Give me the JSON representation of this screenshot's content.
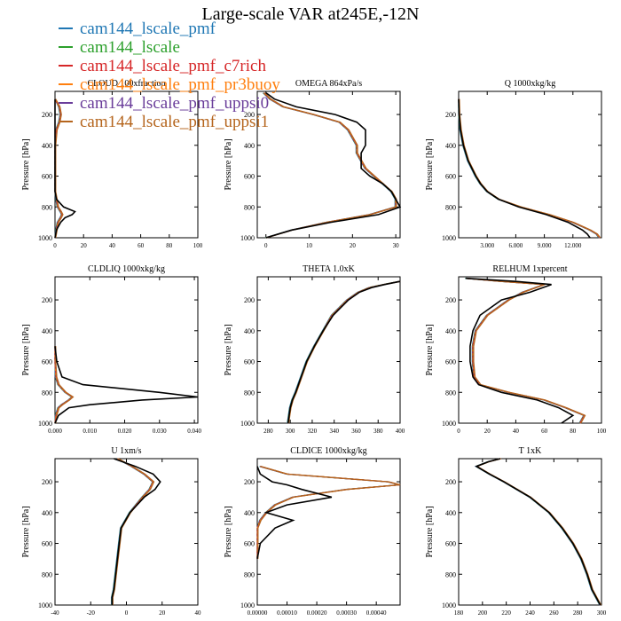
{
  "title": "Large-scale VAR at245E,-12N",
  "legend": [
    {
      "name": "cam144_lscale_pmf",
      "color": "#1f77b4"
    },
    {
      "name": "cam144_lscale",
      "color": "#2ca02c"
    },
    {
      "name": "cam144_lscale_pmf_c7rich",
      "color": "#d62728"
    },
    {
      "name": "cam144_lscale_pmf_pr3buoy",
      "color": "#ff7f0e"
    },
    {
      "name": "cam144_lscale_pmf_uppsi0",
      "color": "#6a3d9a"
    },
    {
      "name": "cam144_lscale_pmf_uppsi1",
      "color": "#b5651d"
    }
  ],
  "reference_color": "#000000",
  "chart_data": [
    {
      "type": "line",
      "title": "CLOUD 100xfraction",
      "ylabel": "Pressure [hPa]",
      "xlim": [
        0,
        100
      ],
      "ylim": [
        1000,
        50
      ],
      "y_reversed": true,
      "xticks": [
        "0",
        "20",
        "40",
        "60",
        "80",
        "100"
      ],
      "xtick_values": [
        0,
        20,
        40,
        60,
        80,
        100
      ],
      "yticks": [
        "200",
        "400",
        "600",
        "800",
        "1000"
      ],
      "pressure": [
        100,
        150,
        200,
        250,
        300,
        400,
        500,
        600,
        700,
        750,
        800,
        830,
        850,
        870,
        900,
        950,
        1000
      ],
      "model": [
        0,
        3,
        4,
        3,
        1,
        0,
        0,
        0,
        0,
        1,
        2,
        4,
        5,
        4,
        2,
        1,
        0
      ],
      "reference": [
        0,
        0,
        0,
        0,
        0,
        0,
        0,
        0,
        0,
        1,
        6,
        14,
        12,
        7,
        4,
        1,
        0
      ]
    },
    {
      "type": "line",
      "title": "OMEGA  864xPa/s",
      "ylabel": "Pressure [hPa]",
      "xlim": [
        -2,
        31
      ],
      "ylim": [
        1000,
        50
      ],
      "y_reversed": true,
      "xticks": [
        "0",
        "10",
        "20",
        "30"
      ],
      "xtick_values": [
        0,
        10,
        20,
        30
      ],
      "yticks": [
        "200",
        "400",
        "600",
        "800",
        "1000"
      ],
      "pressure": [
        60,
        100,
        150,
        200,
        250,
        300,
        350,
        400,
        450,
        500,
        550,
        600,
        650,
        700,
        750,
        800,
        850,
        900,
        950,
        1000
      ],
      "model": [
        -0.5,
        1,
        4,
        11,
        17,
        19,
        20,
        21,
        21,
        22,
        23,
        25,
        27,
        29,
        30,
        30,
        24,
        14,
        6,
        0
      ],
      "reference": [
        0,
        2,
        7,
        16,
        21,
        23,
        23,
        23,
        22,
        22,
        22,
        24,
        27,
        29,
        30,
        31,
        26,
        15,
        6,
        0
      ]
    },
    {
      "type": "line",
      "title": "Q  1000xkg/kg",
      "ylabel": "Pressure [hPa]",
      "xlim": [
        0,
        15
      ],
      "ylim": [
        1000,
        50
      ],
      "y_reversed": true,
      "xticks": [
        "3.000",
        "6.000",
        "9.000",
        "12.000"
      ],
      "xtick_values": [
        3,
        6,
        9,
        12
      ],
      "yticks": [
        "200",
        "400",
        "600",
        "800",
        "1000"
      ],
      "pressure": [
        100,
        200,
        300,
        400,
        500,
        600,
        650,
        700,
        750,
        800,
        850,
        900,
        950,
        975,
        1000
      ],
      "model": [
        0,
        0.05,
        0.2,
        0.5,
        1,
        1.8,
        2.3,
        3,
        4.2,
        6.5,
        9.5,
        12,
        13.8,
        14.5,
        14.8
      ],
      "reference": [
        0,
        0.05,
        0.2,
        0.5,
        1,
        1.8,
        2.3,
        3,
        4.2,
        6.3,
        9.2,
        11.5,
        13,
        13.5,
        13.8
      ]
    },
    {
      "type": "line",
      "title": "CLDLIQ  1000xkg/kg",
      "ylabel": "Pressure [hPa]",
      "xlim": [
        0,
        0.041
      ],
      "ylim": [
        1000,
        50
      ],
      "y_reversed": true,
      "xticks": [
        "0.000",
        "0.010",
        "0.020",
        "0.030",
        "0.040"
      ],
      "xtick_values": [
        0,
        0.01,
        0.02,
        0.03,
        0.04
      ],
      "yticks": [
        "200",
        "400",
        "600",
        "800",
        "1000"
      ],
      "pressure": [
        500,
        600,
        700,
        750,
        800,
        830,
        850,
        880,
        900,
        950,
        1000
      ],
      "model": [
        0,
        0,
        0.0003,
        0.001,
        0.003,
        0.005,
        0.004,
        0.002,
        0.001,
        0.0003,
        0
      ],
      "reference": [
        0,
        0.0005,
        0.002,
        0.008,
        0.03,
        0.041,
        0.025,
        0.01,
        0.004,
        0.001,
        0
      ]
    },
    {
      "type": "line",
      "title": "THETA  1.0xK",
      "ylabel": "Pressure [hPa]",
      "xlim": [
        270,
        400
      ],
      "ylim": [
        1000,
        50
      ],
      "y_reversed": true,
      "xticks": [
        "280",
        "300",
        "320",
        "340",
        "360",
        "380",
        "400"
      ],
      "xtick_values": [
        280,
        300,
        320,
        340,
        360,
        380,
        400
      ],
      "yticks": [
        "200",
        "400",
        "600",
        "800",
        "1000"
      ],
      "pressure": [
        80,
        100,
        120,
        150,
        200,
        300,
        400,
        500,
        600,
        700,
        800,
        850,
        900,
        950,
        1000
      ],
      "model": [
        400,
        385,
        372,
        362,
        352,
        338,
        330,
        322,
        315,
        310,
        305,
        302,
        300,
        299,
        298
      ],
      "reference": [
        400,
        386,
        374,
        363,
        353,
        339,
        330,
        322,
        315,
        310,
        305,
        302,
        300,
        299,
        298
      ]
    },
    {
      "type": "line",
      "title": "RELHUM  1xpercent",
      "ylabel": "Pressure [hPa]",
      "xlim": [
        0,
        100
      ],
      "ylim": [
        1000,
        50
      ],
      "y_reversed": true,
      "xticks": [
        "0",
        "20",
        "40",
        "60",
        "80",
        "100"
      ],
      "xtick_values": [
        0,
        20,
        40,
        60,
        80,
        100
      ],
      "yticks": [
        "200",
        "400",
        "600",
        "800",
        "1000"
      ],
      "pressure": [
        60,
        80,
        100,
        150,
        200,
        300,
        400,
        500,
        600,
        700,
        750,
        800,
        850,
        900,
        950,
        1000
      ],
      "model": [
        5,
        30,
        60,
        45,
        35,
        20,
        12,
        10,
        10,
        11,
        15,
        35,
        60,
        75,
        88,
        85
      ],
      "reference": [
        5,
        40,
        65,
        50,
        30,
        15,
        10,
        8,
        8,
        10,
        14,
        30,
        55,
        70,
        80,
        72
      ]
    },
    {
      "type": "line",
      "title": "U  1xm/s",
      "ylabel": "Pressure [hPa]",
      "xlim": [
        -40,
        40
      ],
      "ylim": [
        1000,
        50
      ],
      "y_reversed": true,
      "xticks": [
        "-40",
        "-20",
        "0",
        "20",
        "40"
      ],
      "xtick_values": [
        -40,
        -20,
        0,
        20,
        40
      ],
      "yticks": [
        "200",
        "400",
        "600",
        "800",
        "1000"
      ],
      "pressure": [
        50,
        100,
        150,
        200,
        250,
        300,
        400,
        500,
        600,
        700,
        800,
        900,
        950,
        1000
      ],
      "model": [
        -5,
        3,
        10,
        15,
        13,
        9,
        2,
        -3,
        -4,
        -5,
        -6,
        -7,
        -8,
        -8
      ],
      "reference": [
        -7,
        5,
        15,
        19,
        16,
        10,
        2,
        -3,
        -4,
        -5,
        -6,
        -7,
        -8,
        -8
      ]
    },
    {
      "type": "line",
      "title": "CLDICE  1000xkg/kg",
      "ylabel": "Pressure [hPa]",
      "xlim": [
        0,
        0.00048
      ],
      "ylim": [
        1000,
        50
      ],
      "y_reversed": true,
      "xticks": [
        "0.00000",
        "0.00010",
        "0.00020",
        "0.00030",
        "0.00040"
      ],
      "xtick_values": [
        0,
        0.0001,
        0.0002,
        0.0003,
        0.0004
      ],
      "yticks": [
        "200",
        "400",
        "600",
        "800",
        "1000"
      ],
      "pressure": [
        100,
        150,
        200,
        220,
        250,
        300,
        350,
        400,
        450,
        500,
        600,
        700
      ],
      "model": [
        1e-05,
        0.0001,
        0.00044,
        0.00048,
        0.0003,
        0.00012,
        6e-05,
        3e-05,
        1e-05,
        0,
        0,
        0
      ],
      "reference": [
        0,
        1e-05,
        5e-05,
        0.0001,
        0.00015,
        0.00025,
        0.0001,
        3e-05,
        0.00012,
        6e-05,
        1e-05,
        0
      ]
    },
    {
      "type": "line",
      "title": "T  1xK",
      "ylabel": "Pressure [hPa]",
      "xlim": [
        180,
        300
      ],
      "ylim": [
        1000,
        50
      ],
      "y_reversed": true,
      "xticks": [
        "180",
        "200",
        "220",
        "240",
        "260",
        "280",
        "300"
      ],
      "xtick_values": [
        180,
        200,
        220,
        240,
        260,
        280,
        300
      ],
      "yticks": [
        "200",
        "400",
        "600",
        "800",
        "1000"
      ],
      "pressure": [
        50,
        70,
        100,
        150,
        200,
        300,
        400,
        500,
        600,
        700,
        800,
        900,
        1000
      ],
      "model": [
        215,
        205,
        195,
        206,
        218,
        240,
        256,
        267,
        276,
        283,
        288,
        292,
        299
      ],
      "reference": [
        215,
        205,
        195,
        206,
        218,
        240,
        256,
        267,
        276,
        283,
        288,
        292,
        299
      ]
    }
  ]
}
